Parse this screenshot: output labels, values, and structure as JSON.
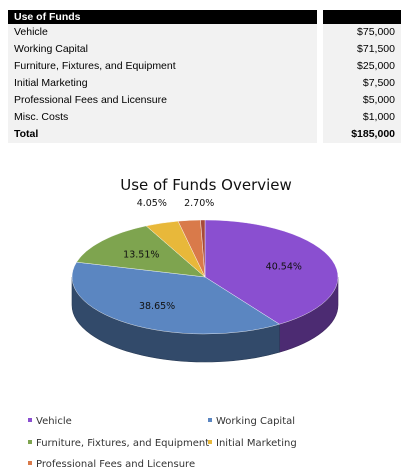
{
  "table": {
    "header": "Use of Funds",
    "rows": [
      {
        "label": "Vehicle",
        "amount": "$75,000"
      },
      {
        "label": "Working Capital",
        "amount": "$71,500"
      },
      {
        "label": "Furniture, Fixtures, and Equipment",
        "amount": "$25,000"
      },
      {
        "label": "Initial Marketing",
        "amount": "$7,500"
      },
      {
        "label": "Professional Fees and Licensure",
        "amount": "$5,000"
      },
      {
        "label": "Misc. Costs",
        "amount": "$1,000"
      }
    ],
    "total_label": "Total",
    "total_amount": "$185,000"
  },
  "chart_data": {
    "type": "pie",
    "title": "Use of Funds Overview",
    "categories": [
      "Vehicle",
      "Working Capital",
      "Furniture, Fixtures, and Equipment",
      "Initial Marketing",
      "Professional Fees and Licensure",
      "Misc. Costs"
    ],
    "values": [
      75000,
      71500,
      25000,
      7500,
      5000,
      1000
    ],
    "data_labels": [
      "40.54%",
      "38.65%",
      "13.51%",
      "4.05%",
      "2.70%",
      ""
    ],
    "legend_entries": [
      "Vehicle",
      "Working Capital",
      "Furniture, Fixtures, and Equipment",
      "Initial Marketing",
      "Professional Fees and Licensure"
    ],
    "colors": [
      "#8a4fd0",
      "#5b86c1",
      "#7ea44f",
      "#e8b83a",
      "#d97a4a",
      "#a64a3a"
    ],
    "style": "3d",
    "legend_position": "bottom"
  }
}
